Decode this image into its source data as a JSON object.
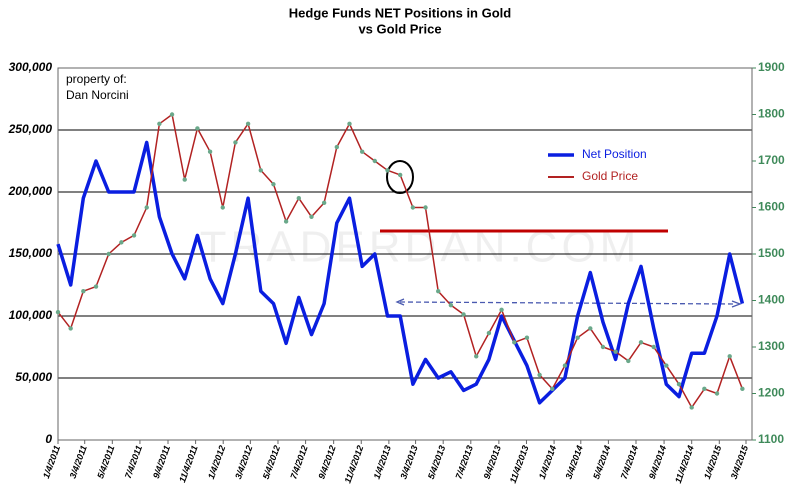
{
  "chart_data": {
    "type": "line",
    "title": [
      "Hedge Funds NET Positions in Gold",
      "vs Gold Price"
    ],
    "annotations": [
      "property of:",
      "Dan Norcini"
    ],
    "watermark": "TRADERDAN.COM",
    "x": [
      "1/4/2011",
      "2/1/2011",
      "3/1/2011",
      "3/29/2011",
      "4/26/2011",
      "5/24/2011",
      "6/21/2011",
      "7/19/2011",
      "8/16/2011",
      "9/13/2011",
      "10/11/2011",
      "11/8/2011",
      "12/6/2011",
      "1/3/2012",
      "1/31/2012",
      "2/28/2012",
      "3/27/2012",
      "4/24/2012",
      "5/22/2012",
      "6/19/2012",
      "7/17/2012",
      "8/14/2012",
      "9/11/2012",
      "10/9/2012",
      "11/6/2012",
      "12/4/2012",
      "1/1/2013",
      "1/29/2013",
      "2/26/2013",
      "3/26/2013",
      "4/23/2013",
      "5/21/2013",
      "6/18/2013",
      "7/16/2013",
      "8/13/2013",
      "9/10/2013",
      "10/8/2013",
      "11/5/2013",
      "12/3/2013",
      "12/31/2013",
      "1/28/2014",
      "2/25/2014",
      "3/25/2014",
      "4/22/2014",
      "5/20/2014",
      "6/17/2014",
      "7/15/2014",
      "8/12/2014",
      "9/9/2014",
      "10/7/2014",
      "11/4/2014",
      "12/2/2014",
      "12/30/2014",
      "1/27/2015",
      "2/24/2015"
    ],
    "series": [
      {
        "name": "Net Position",
        "color": "#0a1ee0",
        "axis": "y",
        "values": [
          158000,
          125000,
          195000,
          225000,
          200000,
          200000,
          200000,
          240000,
          180000,
          150000,
          130000,
          165000,
          130000,
          110000,
          150000,
          195000,
          120000,
          110000,
          78000,
          115000,
          85000,
          110000,
          175000,
          195000,
          140000,
          150000,
          100000,
          100000,
          45000,
          65000,
          50000,
          55000,
          40000,
          45000,
          65000,
          100000,
          80000,
          60000,
          30000,
          40000,
          50000,
          100000,
          135000,
          95000,
          65000,
          110000,
          140000,
          90000,
          45000,
          35000,
          70000,
          70000,
          100000,
          150000,
          110000
        ]
      },
      {
        "name": "Gold Price",
        "color": "#b22222",
        "axis": "y2",
        "values": [
          1375,
          1340,
          1420,
          1430,
          1500,
          1525,
          1540,
          1600,
          1780,
          1800,
          1660,
          1770,
          1720,
          1600,
          1740,
          1780,
          1680,
          1650,
          1570,
          1620,
          1580,
          1610,
          1730,
          1780,
          1720,
          1700,
          1680,
          1670,
          1600,
          1600,
          1420,
          1390,
          1370,
          1280,
          1330,
          1380,
          1310,
          1320,
          1240,
          1210,
          1260,
          1320,
          1340,
          1300,
          1290,
          1270,
          1310,
          1300,
          1260,
          1220,
          1170,
          1210,
          1200,
          1280,
          1210
        ]
      }
    ],
    "xlim": [
      "1/4/2011",
      "3/4/2015"
    ],
    "xticks": [
      "1/4/2011",
      "3/4/2011",
      "5/4/2011",
      "7/4/2011",
      "9/4/2011",
      "11/4/2011",
      "1/4/2012",
      "3/4/2012",
      "5/4/2012",
      "7/4/2012",
      "9/4/2012",
      "11/4/2012",
      "1/4/2013",
      "3/4/2013",
      "5/4/2013",
      "7/4/2013",
      "9/4/2013",
      "11/4/2013",
      "1/4/2014",
      "3/4/2014",
      "5/4/2014",
      "7/4/2014",
      "9/4/2014",
      "11/4/2014",
      "1/4/2015",
      "3/4/2015"
    ],
    "ylim": [
      0,
      300000
    ],
    "yticks": [
      0,
      {
        "value": 50000,
        "label": "50,000"
      },
      {
        "value": 100000,
        "label": "100,000"
      },
      {
        "value": 150000,
        "label": "150,000"
      },
      {
        "value": 200000,
        "label": "200,000"
      },
      {
        "value": 250000,
        "label": "250,000"
      },
      {
        "value": 300000,
        "label": "300,000"
      }
    ],
    "y2lim": [
      1100,
      1900
    ],
    "y2ticks": [
      1100,
      1200,
      1300,
      1400,
      1500,
      1600,
      1700,
      1800,
      1900
    ],
    "grid": true,
    "legend": "upper right"
  }
}
